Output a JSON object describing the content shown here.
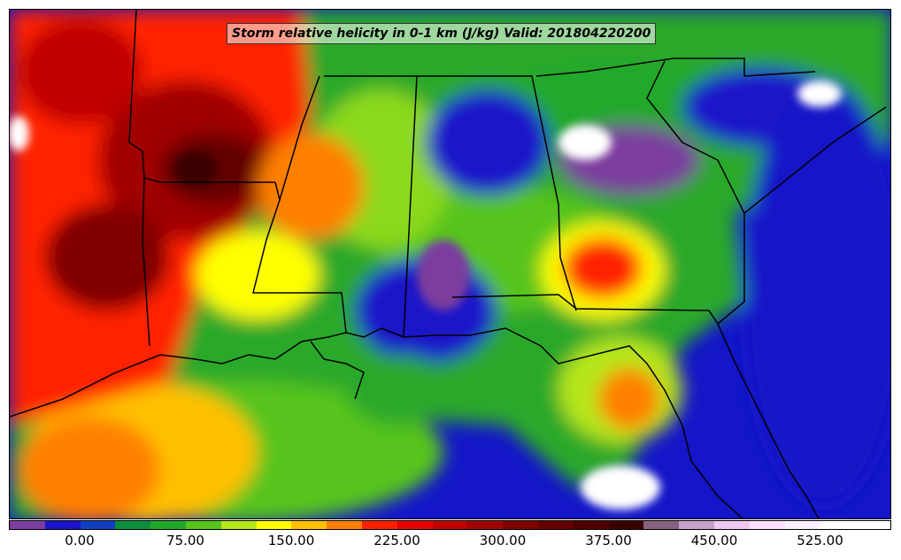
{
  "map": {
    "title": "Storm relative helicity in 0-1 km (J/kg) Valid: 201804220200",
    "variable": "Storm relative helicity in 0-1 km",
    "units": "J/kg",
    "valid_time": "201804220200",
    "region": "Southeastern United States and Gulf of Mexico"
  },
  "colorbar": {
    "colors": [
      "#7b3d9e",
      "#1a14c9",
      "#1040c0",
      "#0c8f3c",
      "#23a82c",
      "#57c41c",
      "#b5e61d",
      "#ffff00",
      "#ffc000",
      "#ff8000",
      "#ff2000",
      "#e80000",
      "#c00000",
      "#a00000",
      "#800000",
      "#640000",
      "#4c0000",
      "#3a0000",
      "#886080",
      "#c8a0c8",
      "#f0c8f0",
      "#ffe0ff",
      "#fff0ff",
      "#ffffff",
      "#ffffff"
    ],
    "tick_labels": [
      "0.00",
      "75.00",
      "150.00",
      "225.00",
      "300.00",
      "375.00",
      "450.00",
      "525.00"
    ]
  }
}
